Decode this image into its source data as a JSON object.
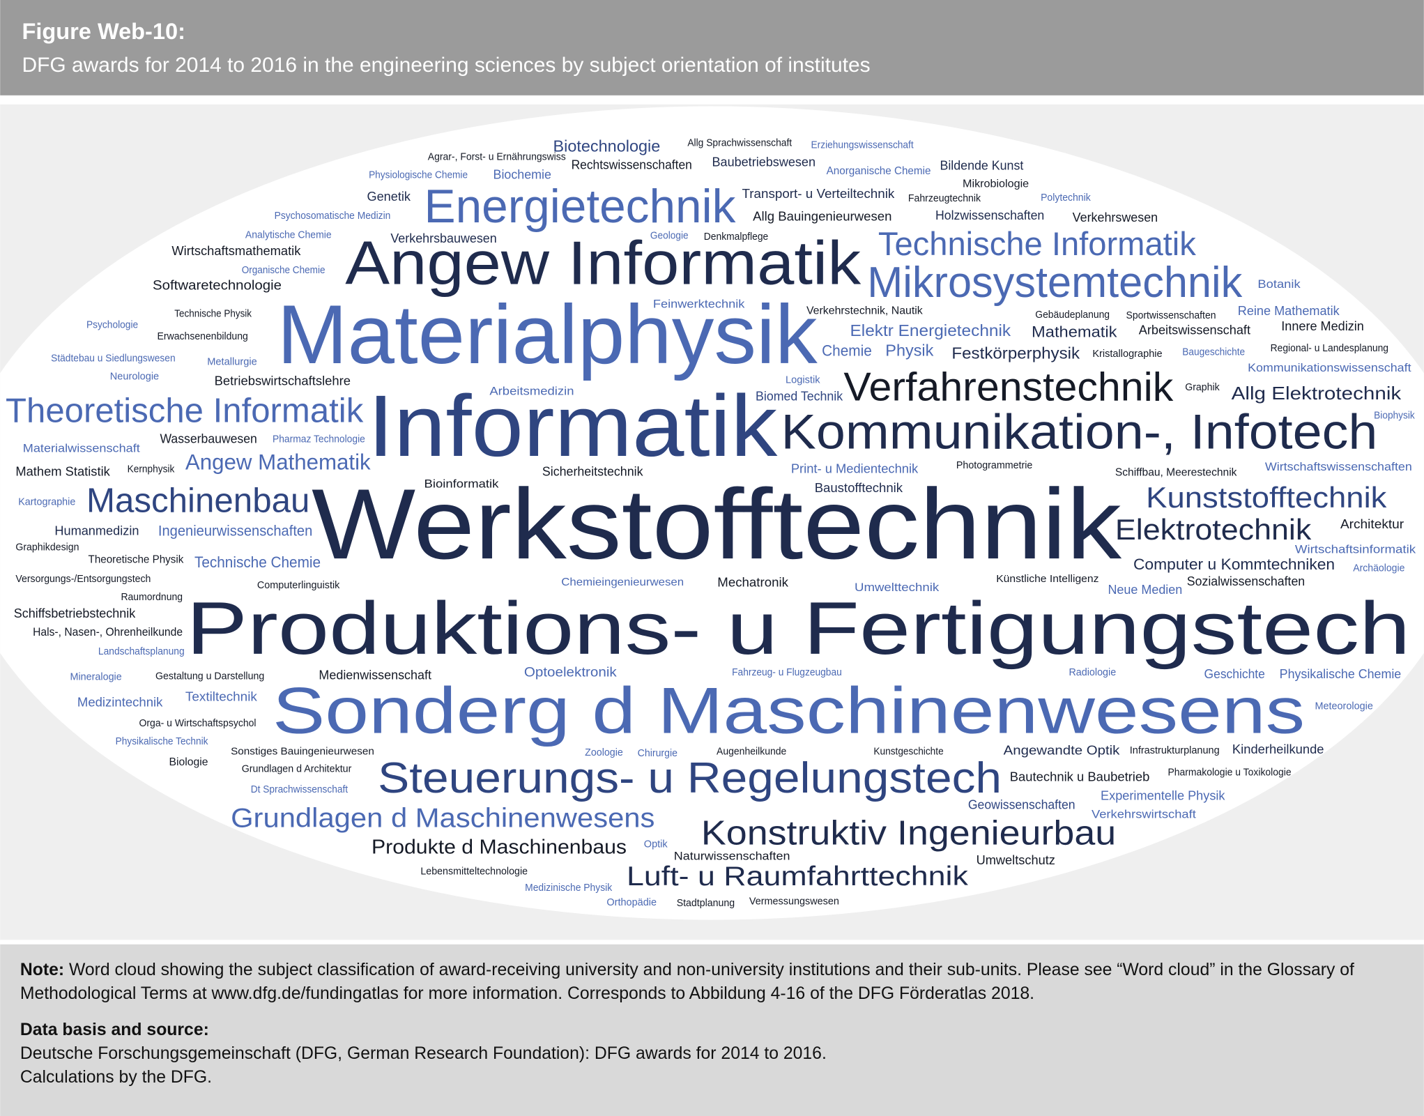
{
  "header": {
    "title": "Figure Web-10:",
    "subtitle": "DFG awards for 2014 to 2016 in the engineering sciences by subject orientation of institutes"
  },
  "cloud": {
    "words": [
      "Biotechnologie",
      "Allg Sprachwissenschaft",
      "Erziehungswissenschaft",
      "Agrar-, Forst- u Ernährungswiss",
      "Rechtswissenschaften",
      "Baubetriebswesen",
      "Anorganische Chemie",
      "Bildende Kunst",
      "Physiologische Chemie",
      "Biochemie",
      "Mikrobiologie",
      "Genetik",
      "Energietechnik",
      "Transport- u Verteiltechnik",
      "Fahrzeugtechnik",
      "Polytechnik",
      "Psychosomatische Medizin",
      "Allg Bauingenieurwesen",
      "Holzwissenschaften",
      "Verkehrswesen",
      "Analytische Chemie",
      "Verkehrsbauwesen",
      "Geologie",
      "Denkmalpflege",
      "Technische Informatik",
      "Wirtschaftsmathematik",
      "Angew Informatik",
      "Organische Chemie",
      "Mikrosystemtechnik",
      "Botanik",
      "Softwaretechnologie",
      "Feinwerktechnik",
      "Technische Physik",
      "Materialphysik",
      "Verkehrstechnik, Nautik",
      "Gebäudeplanung",
      "Sportwissenschaften",
      "Reine Mathematik",
      "Psychologie",
      "Elektr Energietechnik",
      "Mathematik",
      "Arbeitswissenschaft",
      "Innere Medizin",
      "Erwachsenenbildung",
      "Chemie",
      "Physik",
      "Festkörperphysik",
      "Kristallographie",
      "Baugeschichte",
      "Regional- u Landesplanung",
      "Städtebau u Siedlungswesen",
      "Metallurgie",
      "Betriebswirtschaftslehre",
      "Kommunikationswissenschaft",
      "Neurologie",
      "Logistik",
      "Verfahrenstechnik",
      "Graphik",
      "Allg Elektrotechnik",
      "Theoretische Informatik",
      "Informatik",
      "Arbeitsmedizin",
      "Biomed Technik",
      "Kommunikation-, Infotech",
      "Biophysik",
      "Wasserbauwesen",
      "Pharmaz Technologie",
      "Materialwissenschaft",
      "Angew Mathematik",
      "Mathem Statistik",
      "Kernphysik",
      "Photogrammetrie",
      "Bioinformatik",
      "Sicherheitstechnik",
      "Print- u Medientechnik",
      "Schiffbau, Meerestechnik",
      "Wirtschaftswissenschaften",
      "Werkstofftechnik",
      "Baustofftechnik",
      "Kartographie",
      "Maschinenbau",
      "Kunststofftechnik",
      "Humanmedizin",
      "Ingenieurwissenschaften",
      "Elektrotechnik",
      "Architektur",
      "Graphikdesign",
      "Theoretische Physik",
      "Technische Chemie",
      "Wirtschaftsinformatik",
      "Computer u Kommtechniken",
      "Archäologie",
      "Versorgungs-/Entsorgungstech",
      "Computerlinguistik",
      "Chemieingenieurwesen",
      "Mechatronik",
      "Umwelttechnik",
      "Künstliche Intelligenz",
      "Sozialwissenschaften",
      "Raumordnung",
      "Neue Medien",
      "Produktions- u Fertigungstech",
      "Schiffsbetriebstechnik",
      "Hals-, Nasen-, Ohrenheilkunde",
      "Landschaftsplanung",
      "Mineralogie",
      "Gestaltung u Darstellung",
      "Medienwissenschaft",
      "Optoelektronik",
      "Fahrzeug- u Flugzeugbau",
      "Radiologie",
      "Geschichte",
      "Physikalische Chemie",
      "Sonderg d Maschinenwesens",
      "Medizintechnik",
      "Textiltechnik",
      "Meteorologie",
      "Orga- u Wirtschaftspsychol",
      "Physikalische Technik",
      "Zoologie",
      "Chirurgie",
      "Augenheilkunde",
      "Kunstgeschichte",
      "Angewandte Optik",
      "Infrastrukturplanung",
      "Kinderheilkunde",
      "Sonstiges Bauingenieurwesen",
      "Biologie",
      "Grundlagen d Architektur",
      "Steuerungs- u Regelungstech",
      "Bautechnik u Baubetrieb",
      "Pharmakologie u Toxikologie",
      "Dt Sprachwissenschaft",
      "Experimentelle Physik",
      "Geowissenschaften",
      "Verkehrswirtschaft",
      "Grundlagen d Maschinenwesens",
      "Konstruktiv Ingenieurbau",
      "Produkte d Maschinenbaus",
      "Optik",
      "Naturwissenschaften",
      "Umweltschutz",
      "Lebensmitteltechnologie",
      "Luft- u Raumfahrttechnik",
      "Medizinische Physik",
      "Orthopädie",
      "Stadtplanung",
      "Vermessungswesen"
    ]
  },
  "footer": {
    "note_label": "Note:",
    "note_text": "Word cloud showing the subject classification of award-receiving university and non-university institutions and their sub-units. Please see “Word cloud” in the Glossary of Methodological Terms at www.dfg.de/fundingatlas for more information. Corresponds to Abbildung 4-16 of the DFG Förderatlas 2018.",
    "source_heading": "Data basis and source:",
    "source_lines": [
      "Deutsche Forschungsgemeinschaft (DFG, German Research Foundation): DFG awards for 2014 to 2016.",
      "Calculations by the DFG."
    ]
  }
}
